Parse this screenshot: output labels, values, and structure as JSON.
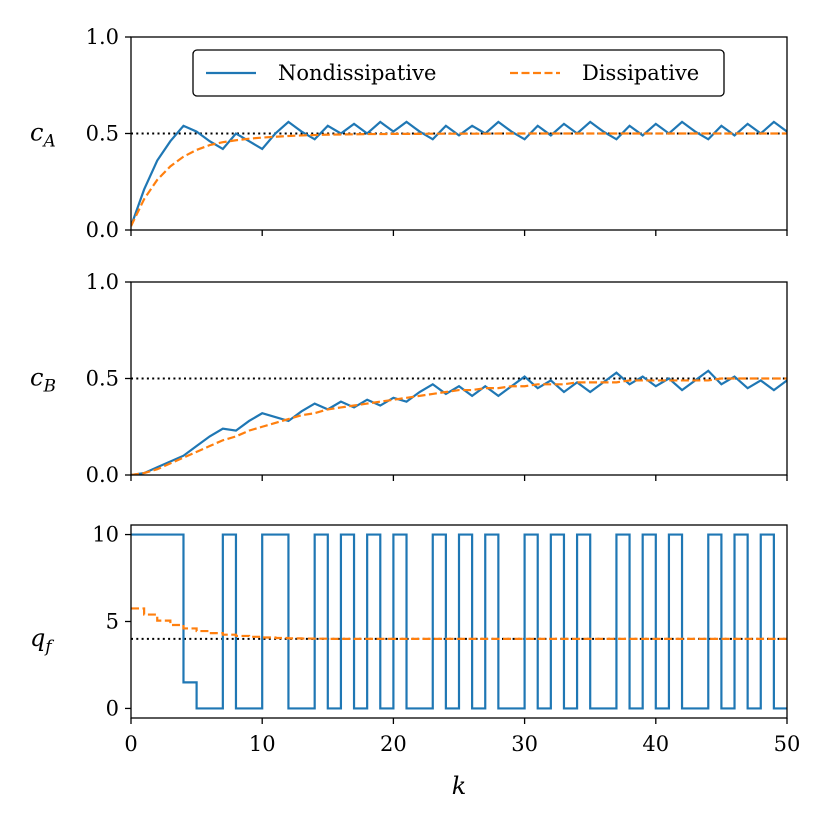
{
  "colors": {
    "nondissipative": "#1f77b4",
    "dissipative": "#ff7f0e",
    "reference": "#000000"
  },
  "chart_data": [
    {
      "type": "line",
      "ylabel_base": "c",
      "ylabel_sub": "A",
      "xlim": [
        0,
        50
      ],
      "ylim": [
        0,
        1
      ],
      "yticks": [
        0.0,
        0.5,
        1.0
      ],
      "yticklabels": [
        "0.0",
        "0.5",
        "1.0"
      ],
      "reference_y": 0.5,
      "step": false,
      "grid": false,
      "legend_position": "top-center",
      "legend": [
        "Nondissipative",
        "Dissipative"
      ],
      "series": [
        {
          "name": "Nondissipative",
          "style": "solid",
          "x": [
            0,
            1,
            2,
            3,
            4,
            5,
            6,
            7,
            8,
            9,
            10,
            11,
            12,
            13,
            14,
            15,
            16,
            17,
            18,
            19,
            20,
            21,
            22,
            23,
            24,
            25,
            26,
            27,
            28,
            29,
            30,
            31,
            32,
            33,
            34,
            35,
            36,
            37,
            38,
            39,
            40,
            41,
            42,
            43,
            44,
            45,
            46,
            47,
            48,
            49,
            50
          ],
          "y": [
            0.02,
            0.21,
            0.36,
            0.46,
            0.54,
            0.51,
            0.46,
            0.42,
            0.5,
            0.46,
            0.42,
            0.5,
            0.56,
            0.51,
            0.47,
            0.54,
            0.5,
            0.55,
            0.5,
            0.56,
            0.51,
            0.56,
            0.51,
            0.47,
            0.54,
            0.49,
            0.54,
            0.5,
            0.56,
            0.51,
            0.47,
            0.54,
            0.49,
            0.55,
            0.5,
            0.56,
            0.51,
            0.47,
            0.54,
            0.49,
            0.55,
            0.5,
            0.56,
            0.51,
            0.47,
            0.54,
            0.49,
            0.55,
            0.5,
            0.56,
            0.51
          ]
        },
        {
          "name": "Dissipative",
          "style": "dashed",
          "x": [
            0,
            1,
            2,
            3,
            4,
            5,
            6,
            7,
            8,
            9,
            10,
            11,
            12,
            13,
            14,
            15,
            16,
            17,
            18,
            19,
            20,
            21,
            22,
            23,
            24,
            25,
            26,
            27,
            28,
            29,
            30,
            31,
            32,
            33,
            34,
            35,
            36,
            37,
            38,
            39,
            40,
            41,
            42,
            43,
            44,
            45,
            46,
            47,
            48,
            49,
            50
          ],
          "y": [
            0.02,
            0.16,
            0.26,
            0.33,
            0.38,
            0.415,
            0.44,
            0.455,
            0.465,
            0.473,
            0.479,
            0.483,
            0.487,
            0.49,
            0.492,
            0.494,
            0.495,
            0.496,
            0.497,
            0.497,
            0.498,
            0.498,
            0.498,
            0.499,
            0.499,
            0.499,
            0.499,
            0.499,
            0.5,
            0.5,
            0.5,
            0.5,
            0.5,
            0.5,
            0.5,
            0.5,
            0.5,
            0.5,
            0.5,
            0.5,
            0.5,
            0.5,
            0.5,
            0.5,
            0.5,
            0.5,
            0.5,
            0.5,
            0.5,
            0.5,
            0.5
          ]
        }
      ]
    },
    {
      "type": "line",
      "ylabel_base": "c",
      "ylabel_sub": "B",
      "xlim": [
        0,
        50
      ],
      "ylim": [
        0,
        1
      ],
      "yticks": [
        0.0,
        0.5,
        1.0
      ],
      "yticklabels": [
        "0.0",
        "0.5",
        "1.0"
      ],
      "reference_y": 0.5,
      "step": false,
      "grid": false,
      "series": [
        {
          "name": "Nondissipative",
          "style": "solid",
          "x": [
            0,
            1,
            2,
            3,
            4,
            5,
            6,
            7,
            8,
            9,
            10,
            11,
            12,
            13,
            14,
            15,
            16,
            17,
            18,
            19,
            20,
            21,
            22,
            23,
            24,
            25,
            26,
            27,
            28,
            29,
            30,
            31,
            32,
            33,
            34,
            35,
            36,
            37,
            38,
            39,
            40,
            41,
            42,
            43,
            44,
            45,
            46,
            47,
            48,
            49,
            50
          ],
          "y": [
            0.0,
            0.01,
            0.04,
            0.07,
            0.1,
            0.15,
            0.2,
            0.24,
            0.23,
            0.28,
            0.32,
            0.3,
            0.28,
            0.33,
            0.37,
            0.34,
            0.38,
            0.35,
            0.39,
            0.36,
            0.4,
            0.38,
            0.43,
            0.47,
            0.42,
            0.46,
            0.41,
            0.46,
            0.41,
            0.46,
            0.51,
            0.45,
            0.49,
            0.43,
            0.48,
            0.43,
            0.48,
            0.53,
            0.47,
            0.51,
            0.46,
            0.5,
            0.44,
            0.49,
            0.54,
            0.47,
            0.51,
            0.45,
            0.49,
            0.44,
            0.49
          ]
        },
        {
          "name": "Dissipative",
          "style": "dashed",
          "x": [
            0,
            1,
            2,
            3,
            4,
            5,
            6,
            7,
            8,
            9,
            10,
            11,
            12,
            13,
            14,
            15,
            16,
            17,
            18,
            19,
            20,
            21,
            22,
            23,
            24,
            25,
            26,
            27,
            28,
            29,
            30,
            31,
            32,
            33,
            34,
            35,
            36,
            37,
            38,
            39,
            40,
            41,
            42,
            43,
            44,
            45,
            46,
            47,
            48,
            49,
            50
          ],
          "y": [
            0.0,
            0.01,
            0.03,
            0.06,
            0.09,
            0.12,
            0.15,
            0.18,
            0.2,
            0.23,
            0.25,
            0.27,
            0.29,
            0.31,
            0.32,
            0.34,
            0.35,
            0.36,
            0.37,
            0.38,
            0.39,
            0.4,
            0.41,
            0.42,
            0.43,
            0.44,
            0.44,
            0.45,
            0.45,
            0.46,
            0.46,
            0.47,
            0.47,
            0.47,
            0.48,
            0.48,
            0.48,
            0.48,
            0.49,
            0.49,
            0.49,
            0.49,
            0.49,
            0.49,
            0.49,
            0.5,
            0.5,
            0.5,
            0.5,
            0.5,
            0.5
          ]
        }
      ]
    },
    {
      "type": "line",
      "ylabel_base": "q",
      "ylabel_sub": "f",
      "xlim": [
        0,
        50
      ],
      "ylim": [
        -0.55,
        10.55
      ],
      "yticks": [
        0,
        5,
        10
      ],
      "yticklabels": [
        "0",
        "5",
        "10"
      ],
      "xticks": [
        0,
        10,
        20,
        30,
        40,
        50
      ],
      "xticklabels": [
        "0",
        "10",
        "20",
        "30",
        "40",
        "50"
      ],
      "xlabel": "k",
      "reference_y": 4,
      "step": true,
      "grid": false,
      "series": [
        {
          "name": "Nondissipative",
          "style": "solid",
          "x": [
            0,
            1,
            2,
            3,
            4,
            5,
            6,
            7,
            8,
            9,
            10,
            11,
            12,
            13,
            14,
            15,
            16,
            17,
            18,
            19,
            20,
            21,
            22,
            23,
            24,
            25,
            26,
            27,
            28,
            29,
            30,
            31,
            32,
            33,
            34,
            35,
            36,
            37,
            38,
            39,
            40,
            41,
            42,
            43,
            44,
            45,
            46,
            47,
            48,
            49,
            50
          ],
          "y": [
            10,
            10,
            10,
            10,
            1.5,
            0,
            0,
            10,
            0,
            0,
            10,
            10,
            0,
            0,
            10,
            0,
            10,
            0,
            10,
            0,
            10,
            0,
            0,
            10,
            0,
            10,
            0,
            10,
            0,
            0,
            10,
            0,
            10,
            0,
            10,
            0,
            0,
            10,
            0,
            10,
            0,
            10,
            0,
            0,
            10,
            0,
            10,
            0,
            10,
            0,
            0
          ]
        },
        {
          "name": "Dissipative",
          "style": "dashed",
          "x": [
            0,
            1,
            2,
            3,
            4,
            5,
            6,
            7,
            8,
            9,
            10,
            11,
            12,
            13,
            14,
            15,
            16,
            17,
            18,
            19,
            20,
            21,
            22,
            23,
            24,
            25,
            26,
            27,
            28,
            29,
            30,
            31,
            32,
            33,
            34,
            35,
            36,
            37,
            38,
            39,
            40,
            41,
            42,
            43,
            44,
            45,
            46,
            47,
            48,
            49,
            50
          ],
          "y": [
            5.75,
            5.4,
            5.05,
            4.8,
            4.6,
            4.45,
            4.33,
            4.24,
            4.17,
            4.12,
            4.08,
            4.05,
            4.03,
            4.02,
            4.01,
            4.0,
            4.0,
            4.0,
            4.0,
            4.0,
            4.0,
            4.0,
            4.0,
            4.0,
            4.0,
            4.0,
            4.0,
            4.0,
            4.0,
            4.0,
            4.0,
            4.0,
            4.0,
            4.0,
            4.0,
            4.0,
            4.0,
            4.0,
            4.0,
            4.0,
            4.0,
            4.0,
            4.0,
            4.0,
            4.0,
            4.0,
            4.0,
            4.0,
            4.0,
            4.0,
            4.0
          ]
        }
      ]
    }
  ]
}
